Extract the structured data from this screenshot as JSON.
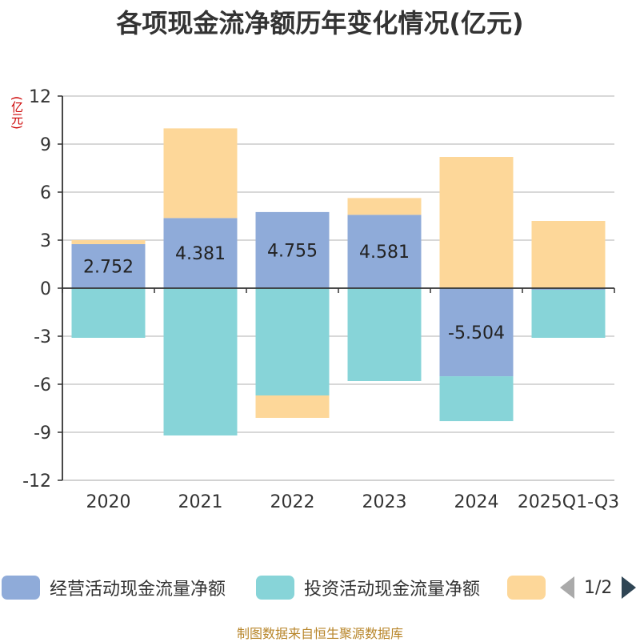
{
  "chart_data": {
    "type": "bar",
    "stacked": true,
    "title": "各项现金流净额历年变化情况(亿元)",
    "ylabel": "(亿元)",
    "xlabel": "",
    "ylim": [
      -12,
      12
    ],
    "yticks": [
      12,
      9,
      6,
      3,
      0,
      -3,
      -6,
      -9,
      -12
    ],
    "categories": [
      "2020",
      "2021",
      "2022",
      "2023",
      "2024",
      "2025Q1-Q3"
    ],
    "series": [
      {
        "name": "经营活动现金流量净额",
        "color": "#8fabd9",
        "values": [
          2.752,
          4.381,
          4.755,
          4.581,
          -5.504,
          -0.1
        ],
        "labels": [
          "2.752",
          "4.381",
          "4.755",
          "4.581",
          "-5.504",
          ""
        ]
      },
      {
        "name": "投资活动现金流量净额",
        "color": "#87d4d8",
        "values": [
          -3.1,
          -9.2,
          -6.7,
          -5.8,
          -2.8,
          -3.0
        ]
      },
      {
        "name": "",
        "color": "#fdd799",
        "values": [
          0.25,
          5.6,
          -1.4,
          1.05,
          8.2,
          4.2
        ]
      }
    ],
    "legend_position": "bottom",
    "grid": true
  },
  "legend": {
    "page_text": "1/2"
  },
  "source": "制图数据来自恒生聚源数据库"
}
